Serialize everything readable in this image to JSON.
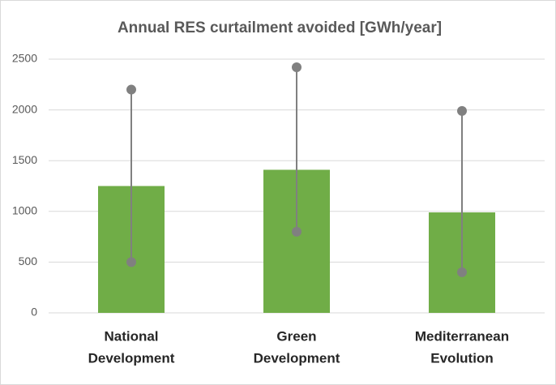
{
  "chart_data": {
    "type": "bar",
    "title": "Annual RES curtailment avoided [GWh/year]",
    "categories": [
      [
        "National",
        "Development"
      ],
      [
        "Green",
        "Development"
      ],
      [
        "Mediterranean",
        "Evolution"
      ]
    ],
    "values": [
      1250,
      1410,
      990
    ],
    "low": [
      500,
      800,
      400
    ],
    "high": [
      2200,
      2420,
      1990
    ],
    "color": "#70ad47",
    "range_color": "#808080",
    "ylim": [
      0,
      2500
    ],
    "yticks": [
      0,
      500,
      1000,
      1500,
      2000,
      2500
    ],
    "grid": true
  }
}
